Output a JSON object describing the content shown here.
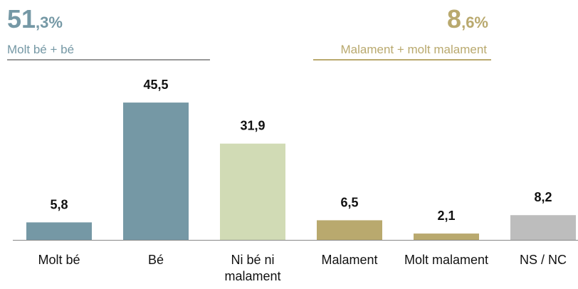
{
  "chart_data": {
    "type": "bar",
    "categories": [
      "Molt bé",
      "Bé",
      "Ni bé ni malament",
      "Malament",
      "Molt malament",
      "NS / NC"
    ],
    "values": [
      5.8,
      45.5,
      31.9,
      6.5,
      2.1,
      8.2
    ],
    "value_labels": [
      "5,8",
      "45,5",
      "31,9",
      "6,5",
      "2,1",
      "8,2"
    ],
    "colors": [
      "#7598a5",
      "#7598a5",
      "#d1dbb5",
      "#b9a96e",
      "#b9a96e",
      "#bdbdbd"
    ],
    "ylim": [
      0,
      50
    ],
    "summaries": [
      {
        "main": "51",
        "sub": ",3%",
        "label": "Molt bé + bé",
        "color": "#7598a5",
        "rule": "#999999"
      },
      {
        "main": "8",
        "sub": ",6%",
        "label": "Malament + molt malament",
        "color": "#b9a96e",
        "rule": "#b9a96e"
      }
    ]
  }
}
